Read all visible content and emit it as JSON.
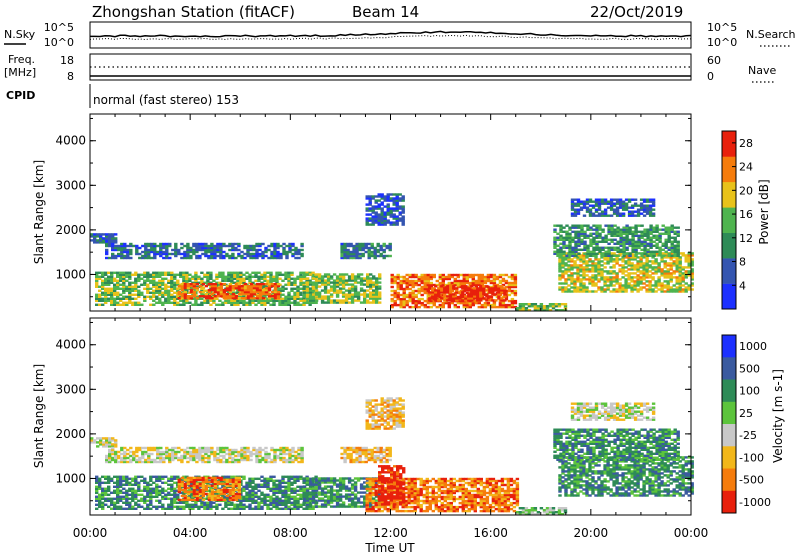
{
  "header": {
    "title": "Zhongshan Station (fitACF)",
    "beam": "Beam 14",
    "date": "22/Oct/2019"
  },
  "top_panels": {
    "nsky_label": "N.Sky",
    "nsearch_label": "N.Search",
    "noise_ticks_left": [
      "10^5",
      "10^0"
    ],
    "noise_ticks_right": [
      "10^5",
      "10^0"
    ],
    "freq_label_1": "Freq.",
    "freq_label_2": "[MHz]",
    "freq_ticks": [
      "18",
      "8"
    ],
    "nave_label": "Nave",
    "nave_ticks": [
      "60",
      "0"
    ],
    "cpid_label": "CPID",
    "cpid_text": "normal (fast stereo) 153"
  },
  "chart_data": [
    {
      "type": "heatmap",
      "title": "",
      "ylabel": "Slant Range [km]",
      "ylim": [
        180,
        4600
      ],
      "yticks": [
        "1000",
        "2000",
        "3000",
        "4000"
      ],
      "xlim_hours": [
        0,
        24
      ],
      "colorbar": {
        "label": "Power [dB]",
        "ticks": [
          "4",
          "8",
          "12",
          "16",
          "20",
          "24",
          "28"
        ],
        "range": [
          0,
          30
        ],
        "colors": [
          "#1c30ff",
          "#3455b0",
          "#2e8b57",
          "#4fb44f",
          "#e8c21a",
          "#f57c0c",
          "#e8200c"
        ]
      },
      "regions": [
        {
          "t0": 0.0,
          "t1": 1.0,
          "r0": 1700,
          "r1": 1900,
          "level": 7
        },
        {
          "t0": 0.6,
          "t1": 8.5,
          "r0": 1350,
          "r1": 1700,
          "level": 7
        },
        {
          "t0": 0.2,
          "t1": 9.0,
          "r0": 300,
          "r1": 1050,
          "level": 15
        },
        {
          "t0": 3.5,
          "t1": 7.5,
          "r0": 450,
          "r1": 800,
          "level": 25
        },
        {
          "t0": 8.5,
          "t1": 11.5,
          "r0": 350,
          "r1": 1000,
          "level": 16
        },
        {
          "t0": 10.0,
          "t1": 12.0,
          "r0": 1350,
          "r1": 1700,
          "level": 9
        },
        {
          "t0": 12.0,
          "t1": 17.0,
          "r0": 250,
          "r1": 1000,
          "level": 24
        },
        {
          "t0": 13.5,
          "t1": 16.5,
          "r0": 400,
          "r1": 750,
          "level": 28
        },
        {
          "t0": 17.0,
          "t1": 19.0,
          "r0": 180,
          "r1": 350,
          "level": 15
        },
        {
          "t0": 18.7,
          "t1": 24.0,
          "r0": 600,
          "r1": 1500,
          "level": 18
        },
        {
          "t0": 18.5,
          "t1": 23.5,
          "r0": 1400,
          "r1": 2100,
          "level": 12
        },
        {
          "t0": 19.2,
          "t1": 22.5,
          "r0": 2300,
          "r1": 2700,
          "level": 7
        },
        {
          "t0": 11.0,
          "t1": 12.5,
          "r0": 2100,
          "r1": 2800,
          "level": 6
        }
      ]
    },
    {
      "type": "heatmap",
      "title": "",
      "ylabel": "Slant Range [km]",
      "ylim": [
        180,
        4600
      ],
      "yticks": [
        "1000",
        "2000",
        "3000",
        "4000"
      ],
      "xlim_hours": [
        0,
        24
      ],
      "xticks": [
        "00:00",
        "04:00",
        "08:00",
        "12:00",
        "16:00",
        "20:00",
        "00:00"
      ],
      "xlabel": "Time UT",
      "colorbar": {
        "label": "Velocity [m s-1]",
        "ticks": [
          "1000",
          "500",
          "100",
          "25",
          "-25",
          "-100",
          "-500",
          "-1000"
        ],
        "colors": [
          "#1c30ff",
          "#3a5a9f",
          "#2e8b57",
          "#5cc43c",
          "#c8c8c8",
          "#f2b71a",
          "#f57c0c",
          "#e8200c"
        ]
      },
      "regions": [
        {
          "t0": 0.0,
          "t1": 1.0,
          "r0": 1700,
          "r1": 1900,
          "level": 4
        },
        {
          "t0": 0.6,
          "t1": 8.5,
          "r0": 1350,
          "r1": 1700,
          "level": 4
        },
        {
          "t0": 0.2,
          "t1": 9.0,
          "r0": 300,
          "r1": 1050,
          "level": 2
        },
        {
          "t0": 3.5,
          "t1": 6.0,
          "r0": 500,
          "r1": 1000,
          "level": 6
        },
        {
          "t0": 8.5,
          "t1": 11.5,
          "r0": 350,
          "r1": 1000,
          "level": 2
        },
        {
          "t0": 10.0,
          "t1": 12.0,
          "r0": 1350,
          "r1": 1700,
          "level": 5
        },
        {
          "t0": 11.0,
          "t1": 17.0,
          "r0": 250,
          "r1": 1000,
          "level": 6
        },
        {
          "t0": 11.5,
          "t1": 12.5,
          "r0": 400,
          "r1": 1300,
          "level": 7
        },
        {
          "t0": 17.0,
          "t1": 19.0,
          "r0": 180,
          "r1": 350,
          "level": 3
        },
        {
          "t0": 18.7,
          "t1": 24.0,
          "r0": 600,
          "r1": 1500,
          "level": 2
        },
        {
          "t0": 18.5,
          "t1": 23.5,
          "r0": 1400,
          "r1": 2100,
          "level": 2
        },
        {
          "t0": 19.2,
          "t1": 22.5,
          "r0": 2300,
          "r1": 2700,
          "level": 4
        },
        {
          "t0": 11.0,
          "t1": 12.5,
          "r0": 2100,
          "r1": 2800,
          "level": 5
        }
      ]
    }
  ]
}
